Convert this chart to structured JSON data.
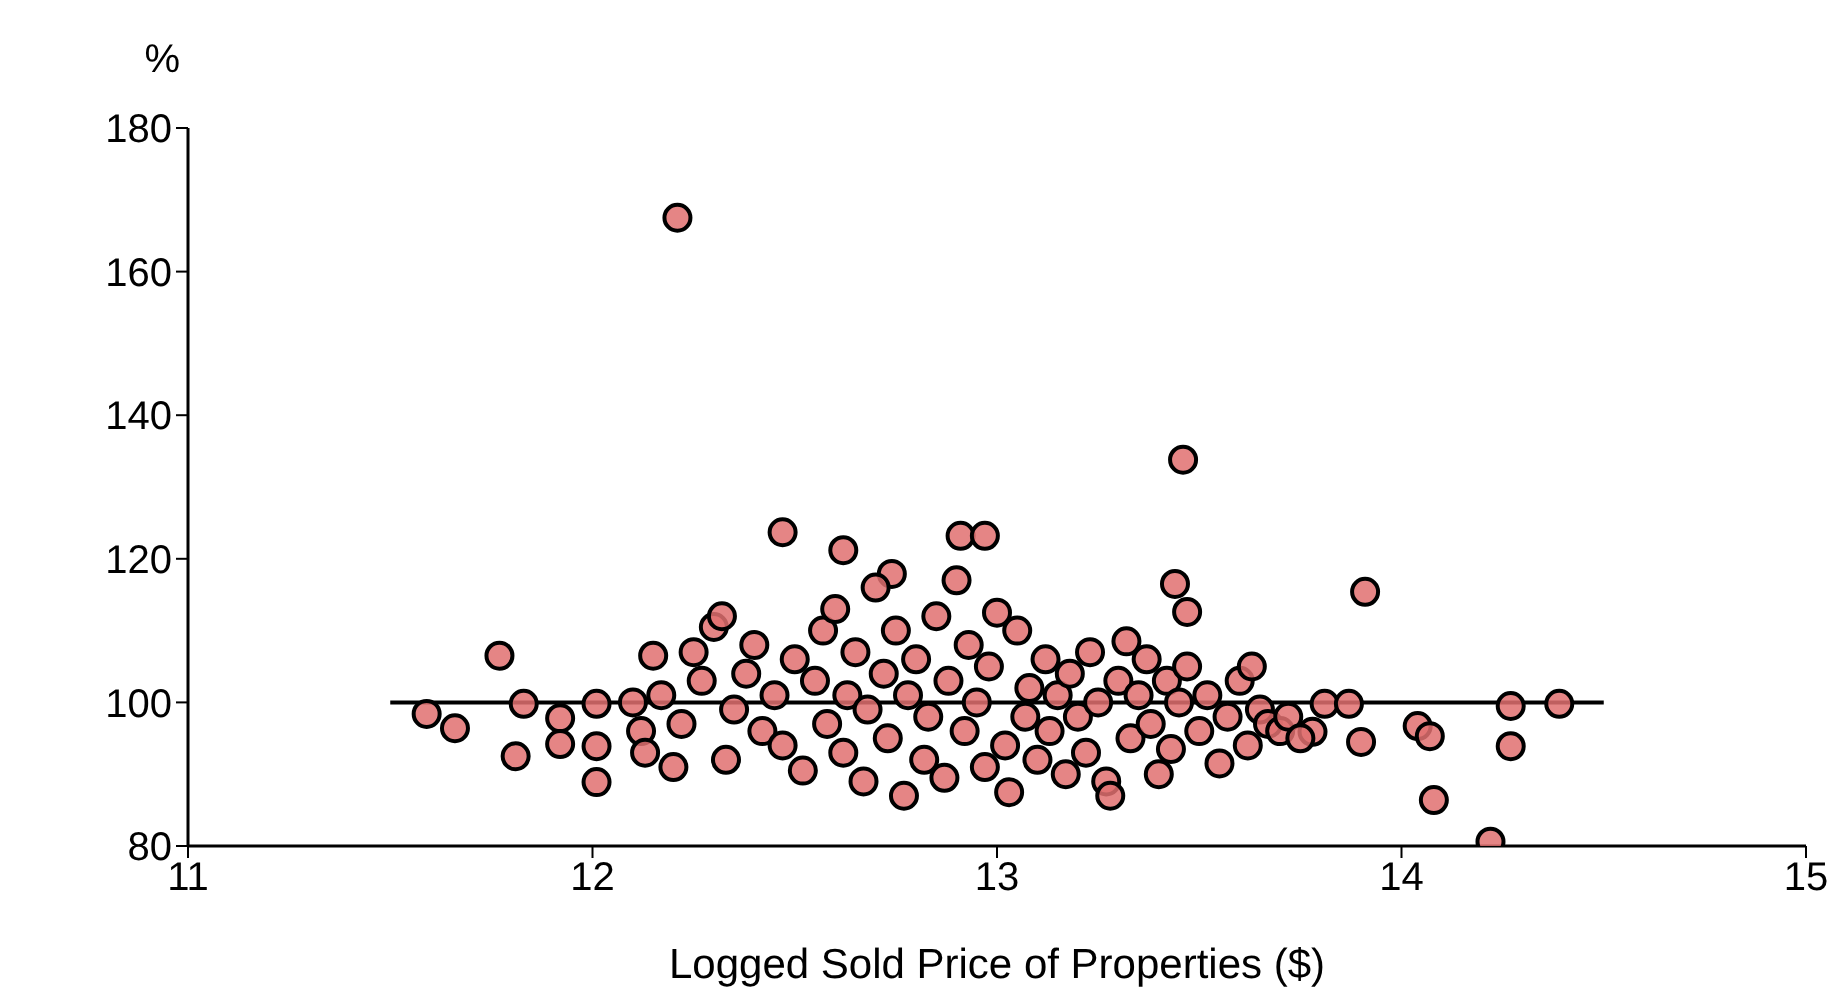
{
  "chart_data": {
    "type": "scatter",
    "xlabel": "Logged Sold Price of Properties ($)",
    "ylabel": "%",
    "xlim": [
      11,
      15
    ],
    "xticks": [
      11,
      12,
      13,
      14,
      15
    ],
    "ylim": [
      80,
      180
    ],
    "yticks": [
      80,
      100,
      120,
      140,
      160,
      180
    ],
    "series": [
      {
        "type": "scatter",
        "marker": "circle",
        "color": "#e07070",
        "x": [
          11.59,
          11.66,
          11.77,
          11.81,
          11.83,
          11.92,
          11.92,
          12.01,
          12.01,
          12.01,
          12.21,
          12.47,
          12.62,
          12.74,
          12.91,
          12.97,
          13.46,
          13.44,
          13.47,
          13.91,
          13.9,
          13.81,
          13.87,
          13.78,
          14.04,
          14.07,
          14.08,
          14.22,
          14.27,
          14.27,
          14.39,
          12.1,
          12.12,
          12.13,
          12.15,
          12.17,
          12.2,
          12.22,
          12.25,
          12.27,
          12.3,
          12.32,
          12.33,
          12.35,
          12.38,
          12.4,
          12.42,
          12.45,
          12.47,
          12.5,
          12.52,
          12.55,
          12.57,
          12.58,
          12.6,
          12.62,
          12.63,
          12.65,
          12.67,
          12.68,
          12.7,
          12.72,
          12.73,
          12.75,
          12.77,
          12.78,
          12.8,
          12.82,
          12.83,
          12.85,
          12.87,
          12.88,
          12.9,
          12.92,
          12.93,
          12.95,
          12.97,
          12.98,
          13.0,
          13.02,
          13.03,
          13.05,
          13.07,
          13.08,
          13.1,
          13.12,
          13.13,
          13.15,
          13.17,
          13.18,
          13.2,
          13.22,
          13.23,
          13.25,
          13.27,
          13.28,
          13.3,
          13.32,
          13.33,
          13.35,
          13.37,
          13.38,
          13.4,
          13.42,
          13.43,
          13.45,
          13.47,
          13.5,
          13.52,
          13.55,
          13.57,
          13.6,
          13.62,
          13.63,
          13.65,
          13.67,
          13.7,
          13.72,
          13.75
        ],
        "values": [
          98.4,
          96.4,
          106.5,
          92.5,
          99.8,
          97.8,
          94.2,
          99.8,
          93.9,
          88.9,
          167.5,
          123.7,
          121.2,
          117.9,
          123.2,
          123.2,
          133.8,
          116.5,
          112.6,
          115.4,
          94.5,
          99.8,
          99.8,
          95.9,
          96.7,
          95.3,
          86.4,
          80.6,
          99.5,
          93.9,
          99.8,
          100,
          96,
          93,
          106.5,
          101,
          91,
          97,
          107,
          103,
          110.5,
          112,
          92,
          99,
          104,
          108,
          96,
          101,
          94,
          106,
          90.5,
          103,
          110,
          97,
          113,
          93,
          101,
          107,
          89,
          99,
          116,
          104,
          95,
          110,
          87,
          101,
          106,
          92,
          98,
          112,
          89.5,
          103,
          117,
          96,
          108,
          100,
          91,
          105,
          112.5,
          94,
          87.5,
          110,
          98,
          102,
          92,
          106,
          96,
          101,
          90,
          104,
          98,
          93,
          107,
          100,
          89,
          87,
          103,
          108.5,
          95,
          101,
          106,
          97,
          90,
          103,
          93.5,
          100,
          105,
          96,
          101,
          91.5,
          98,
          103,
          94,
          105,
          99,
          97,
          96,
          98,
          95
        ]
      },
      {
        "type": "line",
        "marker": "none",
        "line_style": "solid",
        "color": "#000000",
        "x": [
          11.5,
          14.5
        ],
        "values": [
          100,
          100
        ]
      }
    ]
  }
}
